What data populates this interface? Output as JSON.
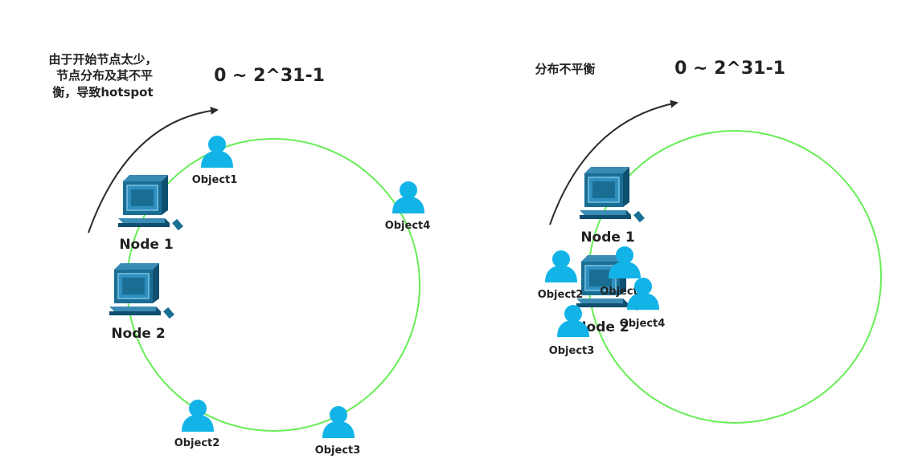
{
  "colors": {
    "ring": "#66ee55",
    "object": "#12b4e8",
    "computer": "#1a6e94",
    "computer_dark": "#0f4f70",
    "arrow": "#2b2b2b",
    "text": "#222222"
  },
  "left": {
    "note_lines": [
      "由于开始节点太少，",
      "节点分布及其不平",
      "衡，导致hotspot"
    ],
    "range_label": "0 ~ 2^31-1",
    "nodes": [
      "Node 1",
      "Node 2"
    ],
    "objects": [
      "Object1",
      "Object4",
      "Object2",
      "Object3"
    ]
  },
  "right": {
    "note": "分布不平衡",
    "range_label": "0 ~ 2^31-1",
    "nodes": [
      "Node 1",
      "Node 2"
    ],
    "objects": [
      "Object2",
      "Object",
      "Object4",
      "Object3"
    ]
  }
}
